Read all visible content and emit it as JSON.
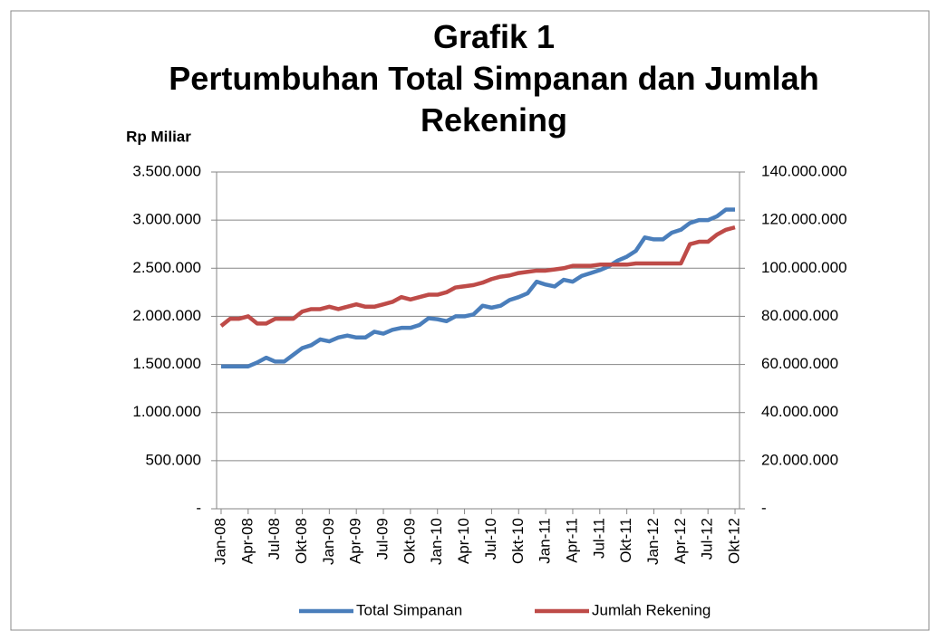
{
  "chart_data": {
    "type": "line",
    "title": "Grafik 1",
    "subtitle": "Pertumbuhan Total Simpanan dan Jumlah Rekening",
    "y_axis_label": "Rp Miliar",
    "categories": [
      "Jan-08",
      null,
      null,
      "Apr-08",
      null,
      null,
      "Jul-08",
      null,
      null,
      "Okt-08",
      null,
      null,
      "Jan-09",
      null,
      null,
      "Apr-09",
      null,
      null,
      "Jul-09",
      null,
      null,
      "Okt-09",
      null,
      null,
      "Jan-10",
      null,
      null,
      "Apr-10",
      null,
      null,
      "Jul-10",
      null,
      null,
      "Okt-10",
      null,
      null,
      "Jan-11",
      null,
      null,
      "Apr-11",
      null,
      null,
      "Jul-11",
      null,
      null,
      "Okt-11",
      null,
      null,
      "Jan-12",
      null,
      null,
      "Apr-12",
      null,
      null,
      "Jul-12",
      null,
      null,
      "Okt-12"
    ],
    "series": [
      {
        "name": "Total Simpanan",
        "color": "#4a7ebb",
        "axis": "y",
        "values": [
          1480000,
          1480000,
          1480000,
          1480000,
          1520000,
          1570000,
          1530000,
          1530000,
          1600000,
          1670000,
          1700000,
          1760000,
          1740000,
          1780000,
          1800000,
          1780000,
          1780000,
          1840000,
          1820000,
          1860000,
          1880000,
          1880000,
          1910000,
          1980000,
          1970000,
          1950000,
          2000000,
          2000000,
          2020000,
          2110000,
          2090000,
          2110000,
          2170000,
          2200000,
          2240000,
          2360000,
          2330000,
          2310000,
          2380000,
          2360000,
          2420000,
          2450000,
          2480000,
          2520000,
          2580000,
          2620000,
          2680000,
          2820000,
          2800000,
          2800000,
          2870000,
          2900000,
          2970000,
          3000000,
          3000000,
          3040000,
          3110000,
          3110000
        ]
      },
      {
        "name": "Jumlah Rekening",
        "color": "#be4b48",
        "axis": "y2",
        "values": [
          76000000,
          79000000,
          79000000,
          80000000,
          77000000,
          77000000,
          79000000,
          79000000,
          79000000,
          82000000,
          83000000,
          83000000,
          84000000,
          83000000,
          84000000,
          85000000,
          84000000,
          84000000,
          85000000,
          86000000,
          88000000,
          87000000,
          88000000,
          89000000,
          89000000,
          90000000,
          92000000,
          92500000,
          93000000,
          94000000,
          95500000,
          96500000,
          97000000,
          98000000,
          98500000,
          99000000,
          99000000,
          99500000,
          100000000,
          101000000,
          101000000,
          101000000,
          101500000,
          101500000,
          101500000,
          101500000,
          102000000,
          102000000,
          102000000,
          102000000,
          102000000,
          102000000,
          110000000,
          111000000,
          111000000,
          114000000,
          116000000,
          117000000
        ]
      }
    ],
    "ylim": [
      0,
      3500000
    ],
    "yticks": [
      {
        "value": 0,
        "label": "-"
      },
      {
        "value": 500000,
        "label": "500.000"
      },
      {
        "value": 1000000,
        "label": "1.000.000"
      },
      {
        "value": 1500000,
        "label": "1.500.000"
      },
      {
        "value": 2000000,
        "label": "2.000.000"
      },
      {
        "value": 2500000,
        "label": "2.500.000"
      },
      {
        "value": 3000000,
        "label": "3.000.000"
      },
      {
        "value": 3500000,
        "label": "3.500.000"
      }
    ],
    "y2lim": [
      0,
      140000000
    ],
    "y2ticks": [
      {
        "value": 0,
        "label": "-"
      },
      {
        "value": 20000000,
        "label": "20.000.000"
      },
      {
        "value": 40000000,
        "label": "40.000.000"
      },
      {
        "value": 60000000,
        "label": "60.000.000"
      },
      {
        "value": 80000000,
        "label": "80.000.000"
      },
      {
        "value": 100000000,
        "label": "100.000.000"
      },
      {
        "value": 120000000,
        "label": "120.000.000"
      },
      {
        "value": 140000000,
        "label": "140.000.000"
      }
    ],
    "grid": true,
    "legend": "bottom"
  }
}
